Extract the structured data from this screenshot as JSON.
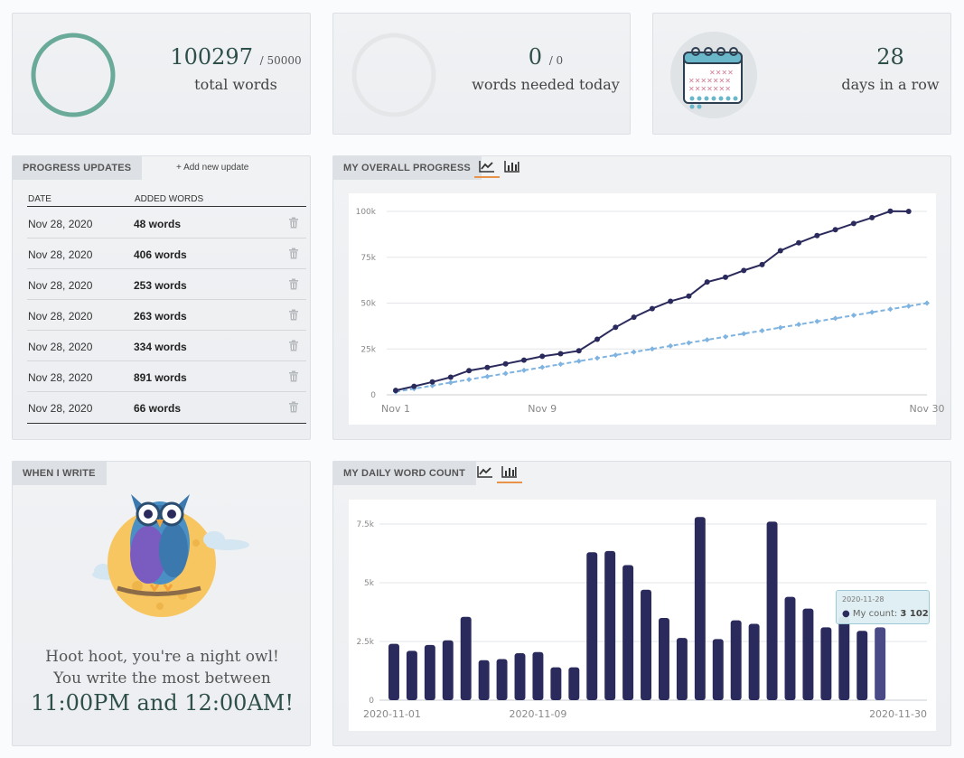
{
  "stats": {
    "total": {
      "value": "100297",
      "target": "/ 50000",
      "label": "total words"
    },
    "today": {
      "value": "0",
      "target": "/ 0",
      "label": "words needed today"
    },
    "streak": {
      "value": "28",
      "label": "days in a row"
    }
  },
  "progress_updates": {
    "tab": "PROGRESS UPDATES",
    "add_link": "+ Add new update",
    "columns": {
      "date": "DATE",
      "words": "ADDED WORDS"
    },
    "rows": [
      {
        "date": "Nov 28, 2020",
        "words": "48 words"
      },
      {
        "date": "Nov 28, 2020",
        "words": "406 words"
      },
      {
        "date": "Nov 28, 2020",
        "words": "253 words"
      },
      {
        "date": "Nov 28, 2020",
        "words": "263 words"
      },
      {
        "date": "Nov 28, 2020",
        "words": "334 words"
      },
      {
        "date": "Nov 28, 2020",
        "words": "891 words"
      },
      {
        "date": "Nov 28, 2020",
        "words": "66 words"
      }
    ]
  },
  "overall_progress": {
    "tab": "MY OVERALL PROGRESS"
  },
  "daily_count": {
    "tab": "MY DAILY WORD COUNT",
    "tooltip": {
      "date": "2020-11-28",
      "series": "My count:",
      "value": "3 102"
    }
  },
  "when_i_write": {
    "tab": "WHEN I WRITE",
    "line1": "Hoot hoot, you're a night owl!",
    "line2": "You write the most between",
    "time": "11:00PM and 12:00AM!"
  },
  "colors": {
    "ring_full": "#6aaa98",
    "ring_empty": "#e4e6e8",
    "navy": "#2b2a5c",
    "light_blue": "#7fb3e0",
    "accent": "#e8924a"
  },
  "chart_data": [
    {
      "type": "line",
      "x_ticks": [
        "Nov 1",
        "Nov 9",
        "Nov 30"
      ],
      "y_ticks": [
        "0",
        "25k",
        "50k",
        "75k",
        "100k"
      ],
      "ylim": [
        0,
        100000
      ],
      "x": [
        1,
        2,
        3,
        4,
        5,
        6,
        7,
        8,
        9,
        10,
        11,
        12,
        13,
        14,
        15,
        16,
        17,
        18,
        19,
        20,
        21,
        22,
        23,
        24,
        25,
        26,
        27,
        28,
        29,
        30
      ],
      "series": [
        {
          "style": "solid",
          "values": [
            2400,
            4600,
            7000,
            9600,
            13200,
            14900,
            16900,
            18900,
            21000,
            22400,
            24000,
            30300,
            36800,
            42300,
            47000,
            51000,
            53800,
            61500,
            64100,
            67800,
            71000,
            78600,
            82900,
            86800,
            90000,
            93400,
            96600,
            100100,
            100000,
            null
          ]
        },
        {
          "style": "dashed",
          "values": [
            1667,
            3333,
            5000,
            6667,
            8333,
            10000,
            11667,
            13333,
            15000,
            16667,
            18333,
            20000,
            21667,
            23333,
            25000,
            26667,
            28333,
            30000,
            31667,
            33333,
            35000,
            36667,
            38333,
            40000,
            41667,
            43333,
            45000,
            46667,
            48333,
            50000
          ]
        }
      ],
      "grid": true
    },
    {
      "type": "bar",
      "x_ticks": [
        "2020-11-01",
        "2020-11-09",
        "2020-11-30"
      ],
      "y_ticks": [
        "0",
        "2.5k",
        "5k",
        "7.5k"
      ],
      "ylim": [
        0,
        7500
      ],
      "categories": [
        "2020-11-01",
        "2020-11-02",
        "2020-11-03",
        "2020-11-04",
        "2020-11-05",
        "2020-11-06",
        "2020-11-07",
        "2020-11-08",
        "2020-11-09",
        "2020-11-10",
        "2020-11-11",
        "2020-11-12",
        "2020-11-13",
        "2020-11-14",
        "2020-11-15",
        "2020-11-16",
        "2020-11-17",
        "2020-11-18",
        "2020-11-19",
        "2020-11-20",
        "2020-11-21",
        "2020-11-22",
        "2020-11-23",
        "2020-11-24",
        "2020-11-25",
        "2020-11-26",
        "2020-11-27",
        "2020-11-28",
        "2020-11-29",
        "2020-11-30"
      ],
      "series": [
        {
          "name": "My count",
          "values": [
            2400,
            2100,
            2350,
            2550,
            3550,
            1700,
            1750,
            2000,
            2050,
            1400,
            1400,
            6300,
            6350,
            5750,
            4700,
            3500,
            2650,
            7800,
            2600,
            3400,
            3250,
            7600,
            4400,
            3900,
            3100,
            3550,
            2950,
            3102,
            0,
            0
          ]
        }
      ],
      "grid": true
    }
  ]
}
